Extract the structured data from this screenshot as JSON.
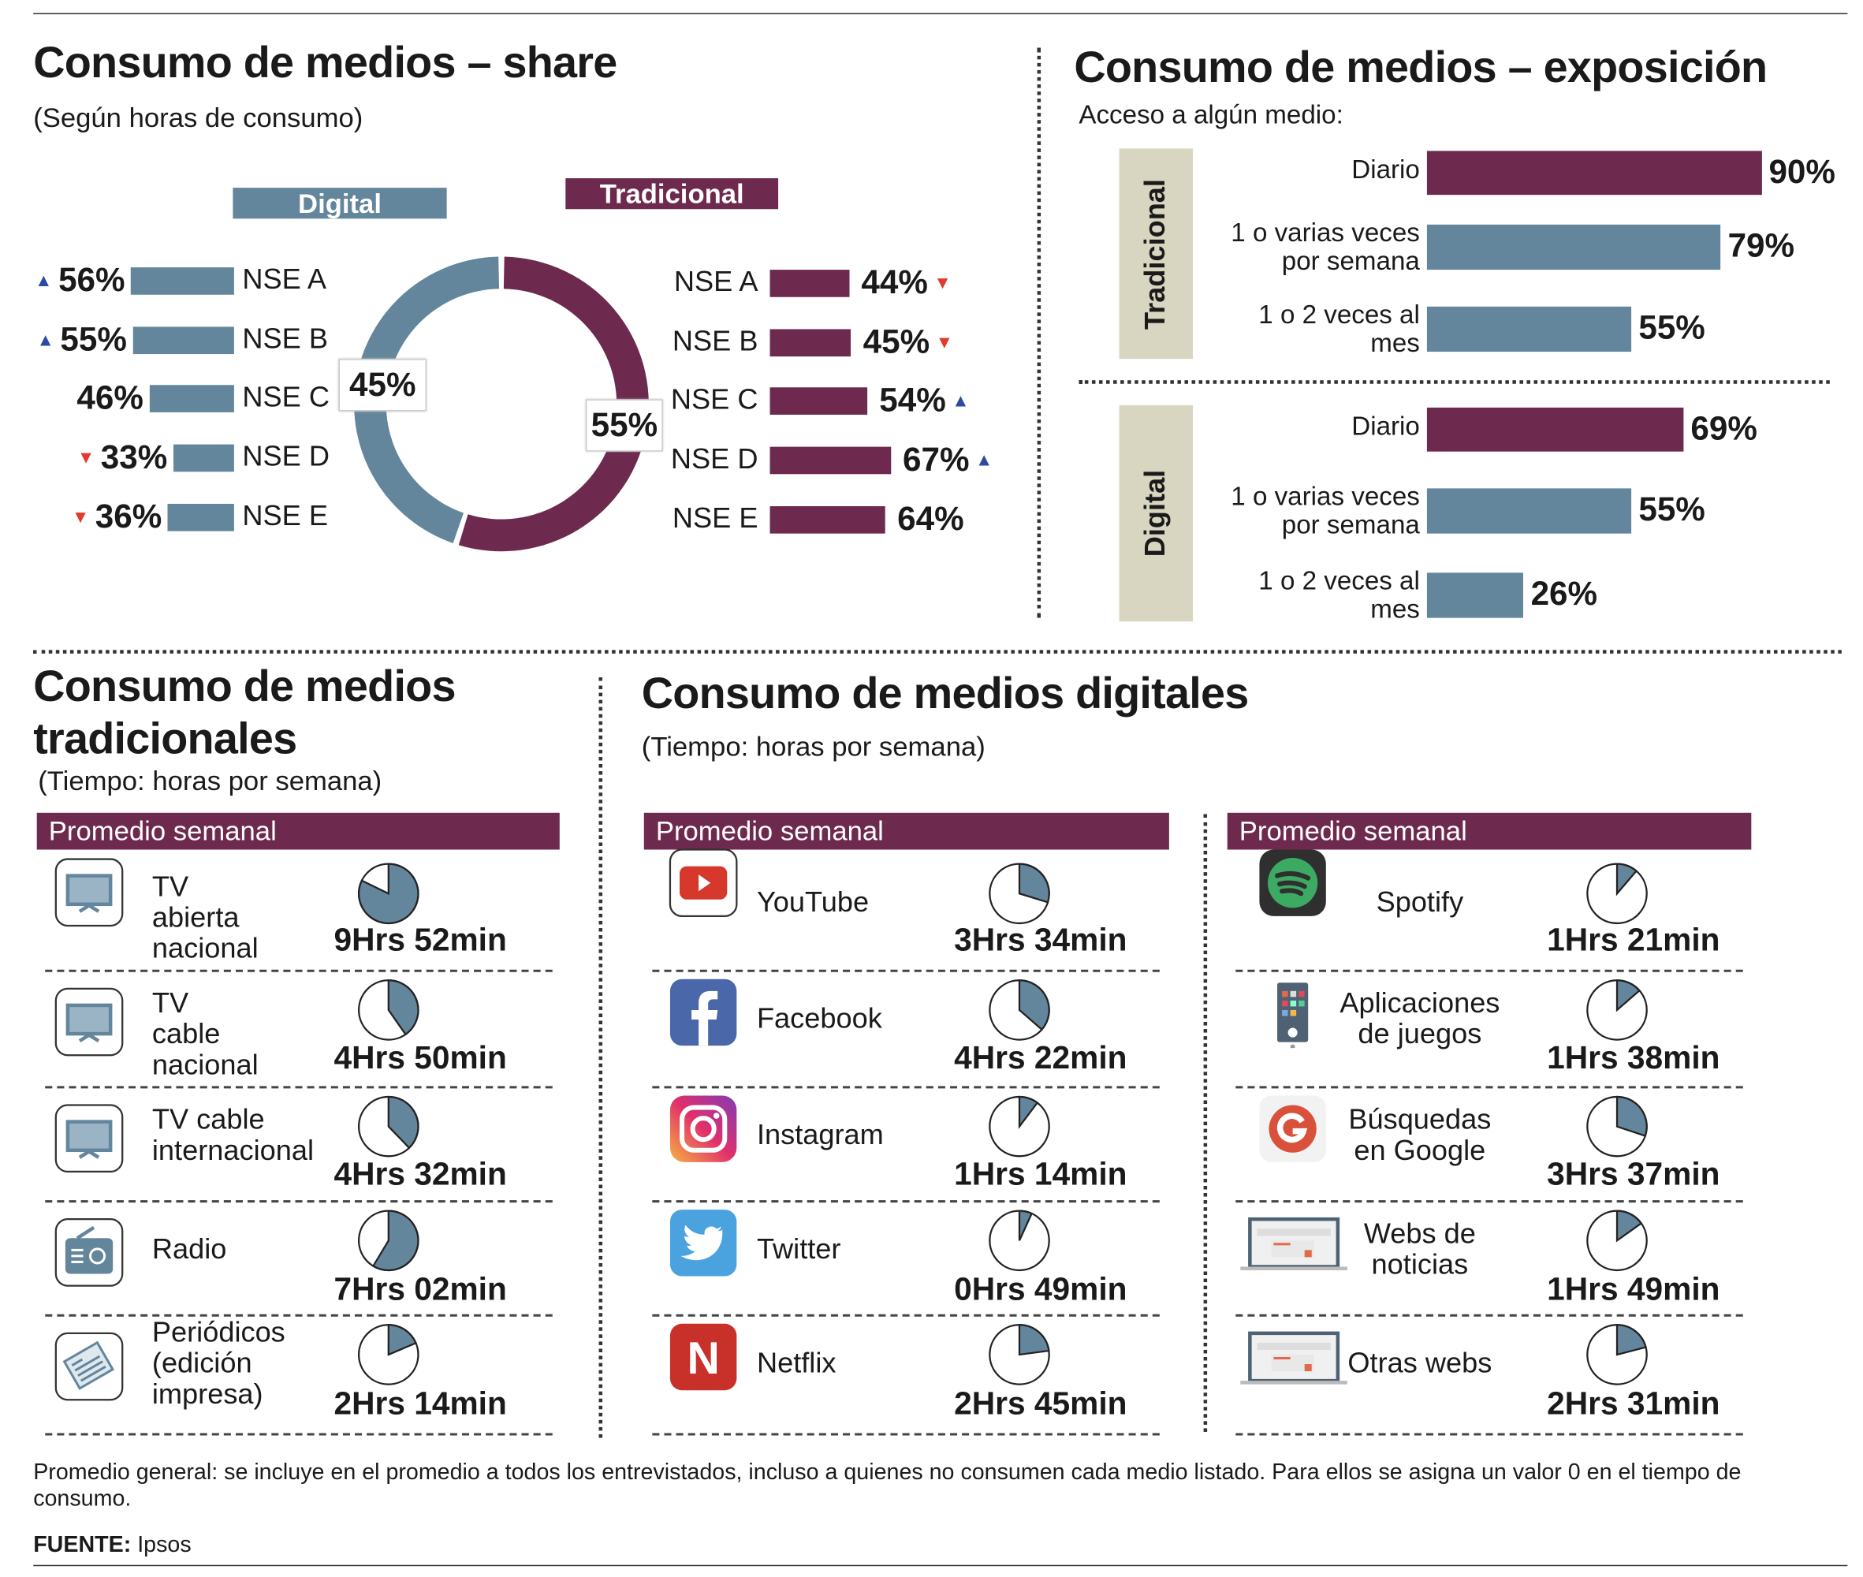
{
  "colors": {
    "traditional": "#6e2a4e",
    "digital": "#63869c",
    "side_panel": "#d8d6c0",
    "arrow_up": "#2b4aa0",
    "arrow_down": "#e23a2c"
  },
  "share": {
    "title": "Consumo de medios  – share",
    "subtitle": "(Según horas de consumo)",
    "digital_label": "Digital",
    "traditional_label": "Tradicional"
  },
  "exposure": {
    "title": "Consumo de medios – exposición",
    "subtitle": "Acceso a algún medio:",
    "traditional_label": "Tradicional",
    "digital_label": "Digital"
  },
  "traditional_section": {
    "title_line1": "Consumo de medios",
    "title_line2": "tradicionales",
    "subtitle": "(Tiempo: horas por semana)",
    "header": "Promedio semanal"
  },
  "digital_section": {
    "title": "Consumo de medios digitales",
    "subtitle": "(Tiempo: horas por semana)",
    "header_left": "Promedio semanal",
    "header_right": "Promedio semanal"
  },
  "chart_data": [
    {
      "type": "pie",
      "variant": "donut",
      "slices": [
        {
          "name": "Tradicional",
          "value": 55,
          "label": "55%"
        },
        {
          "name": "Digital",
          "value": 45,
          "label": "45%"
        }
      ]
    },
    {
      "type": "bar",
      "orientation": "horizontal",
      "name": "Digital",
      "categories": [
        "NSE A",
        "NSE B",
        "NSE C",
        "NSE D",
        "NSE E"
      ],
      "values": [
        56,
        55,
        46,
        33,
        36
      ],
      "labels": [
        "56%",
        "55%",
        "46%",
        "33%",
        "36%"
      ],
      "trend": [
        "up",
        "up",
        "",
        "down",
        "down"
      ]
    },
    {
      "type": "bar",
      "orientation": "horizontal",
      "name": "Tradicional",
      "categories": [
        "NSE A",
        "NSE B",
        "NSE C",
        "NSE D",
        "NSE E"
      ],
      "values": [
        44,
        45,
        54,
        67,
        64
      ],
      "labels": [
        "44%",
        "45%",
        "54%",
        "67%",
        "64%"
      ],
      "trend": [
        "down",
        "down",
        "up",
        "up",
        ""
      ]
    },
    {
      "type": "bar",
      "orientation": "horizontal",
      "name": "Tradicional",
      "categories": [
        "Diario",
        "1 o varias veces por semana",
        "1 o 2 veces al mes"
      ],
      "category_lines": [
        [
          "Diario"
        ],
        [
          "1 o varias veces",
          "por semana"
        ],
        [
          "1 o 2 veces al",
          "mes"
        ]
      ],
      "values": [
        90,
        79,
        55
      ],
      "labels": [
        "90%",
        "79%",
        "55%"
      ]
    },
    {
      "type": "bar",
      "orientation": "horizontal",
      "name": "Digital",
      "categories": [
        "Diario",
        "1 o varias veces por semana",
        "1 o 2 veces al mes"
      ],
      "category_lines": [
        [
          "Diario"
        ],
        [
          "1 o varias veces",
          "por semana"
        ],
        [
          "1 o 2 veces al",
          "mes"
        ]
      ],
      "values": [
        69,
        55,
        26
      ],
      "labels": [
        "69%",
        "55%",
        "26%"
      ]
    }
  ],
  "media_traditional": [
    {
      "name_lines": [
        "TV abierta",
        "nacional"
      ],
      "icon": "tv-icon",
      "hours": 9,
      "minutes": 52,
      "time": "9Hrs 52min"
    },
    {
      "name_lines": [
        "TV cable",
        "nacional"
      ],
      "icon": "tv-icon",
      "hours": 4,
      "minutes": 50,
      "time": "4Hrs 50min"
    },
    {
      "name_lines": [
        "TV cable",
        "internacional"
      ],
      "icon": "tv-icon",
      "hours": 4,
      "minutes": 32,
      "time": "4Hrs 32min"
    },
    {
      "name_lines": [
        "Radio"
      ],
      "icon": "radio-icon",
      "hours": 7,
      "minutes": 2,
      "time": "7Hrs 02min"
    },
    {
      "name_lines": [
        "Periódicos",
        "(edición",
        "impresa)"
      ],
      "icon": "newspaper-icon",
      "hours": 2,
      "minutes": 14,
      "time": "2Hrs 14min"
    }
  ],
  "media_digital_left": [
    {
      "name_lines": [
        "YouTube"
      ],
      "icon": "youtube-icon",
      "hours": 3,
      "minutes": 34,
      "time": "3Hrs 34min"
    },
    {
      "name_lines": [
        "Facebook"
      ],
      "icon": "facebook-icon",
      "hours": 4,
      "minutes": 22,
      "time": "4Hrs 22min"
    },
    {
      "name_lines": [
        "Instagram"
      ],
      "icon": "instagram-icon",
      "hours": 1,
      "minutes": 14,
      "time": "1Hrs 14min"
    },
    {
      "name_lines": [
        "Twitter"
      ],
      "icon": "twitter-icon",
      "hours": 0,
      "minutes": 49,
      "time": "0Hrs 49min"
    },
    {
      "name_lines": [
        "Netflix"
      ],
      "icon": "netflix-icon",
      "hours": 2,
      "minutes": 45,
      "time": "2Hrs 45min"
    }
  ],
  "media_digital_right": [
    {
      "name_lines": [
        "Spotify"
      ],
      "icon": "spotify-icon",
      "hours": 1,
      "minutes": 21,
      "time": "1Hrs 21min"
    },
    {
      "name_lines": [
        "Aplicaciones",
        "de juegos"
      ],
      "icon": "phone-apps-icon",
      "hours": 1,
      "minutes": 38,
      "time": "1Hrs 38min"
    },
    {
      "name_lines": [
        "Búsquedas",
        "en Google"
      ],
      "icon": "google-icon",
      "hours": 3,
      "minutes": 37,
      "time": "3Hrs 37min"
    },
    {
      "name_lines": [
        "Webs de",
        "noticias"
      ],
      "icon": "laptop-web-icon",
      "hours": 1,
      "minutes": 49,
      "time": "1Hrs 49min"
    },
    {
      "name_lines": [
        "Otras webs"
      ],
      "icon": "laptop-web-icon",
      "hours": 2,
      "minutes": 31,
      "time": "2Hrs 31min"
    }
  ],
  "footer": {
    "note": "Promedio general: se incluye en el promedio a todos los entrevistados, incluso a quienes no consumen cada medio listado. Para ellos se asigna un valor 0 en el tiempo de consumo.",
    "source_label": "FUENTE:",
    "source_value": " Ipsos"
  }
}
